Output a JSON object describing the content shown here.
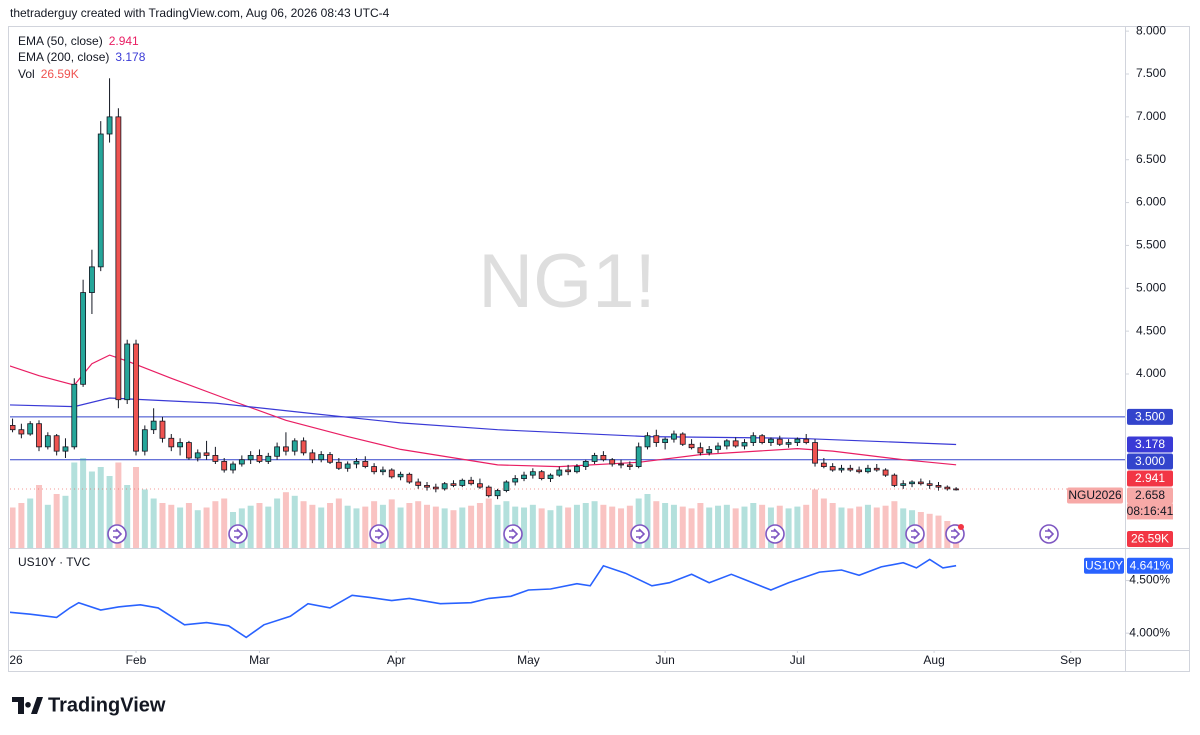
{
  "chart_data": {
    "type": "candlestick",
    "header": "thetraderguy created with TradingView.com, Aug 06, 2026 08:43 UTC-4",
    "watermark": "NG1!",
    "symbol_label": "NGU2026",
    "countdown": "08:16:41",
    "footer_brand": "TradingView",
    "up_color": "#26a69a",
    "down_color": "#ef5350",
    "xlim": [
      3.42,
      256.3
    ],
    "xticks": [
      {
        "value": 1,
        "label": "26"
      },
      {
        "value": 32,
        "label": "Feb"
      },
      {
        "value": 60,
        "label": "Mar"
      },
      {
        "value": 91,
        "label": "Apr"
      },
      {
        "value": 121,
        "label": "May"
      },
      {
        "value": 152,
        "label": "Jun"
      },
      {
        "value": 182,
        "label": "Jul"
      },
      {
        "value": 213,
        "label": "Aug"
      },
      {
        "value": 244,
        "label": "Sep"
      }
    ],
    "ylim": [
      1.97,
      8.06
    ],
    "yticks": [
      {
        "value": 4,
        "label": "4.000"
      },
      {
        "value": 4.5,
        "label": "4.500"
      },
      {
        "value": 5,
        "label": "5.000"
      },
      {
        "value": 5.5,
        "label": "5.500"
      },
      {
        "value": 6,
        "label": "6.000"
      },
      {
        "value": 6.5,
        "label": "6.500"
      },
      {
        "value": 7,
        "label": "7.000"
      },
      {
        "value": 7.5,
        "label": "7.500"
      },
      {
        "value": 8,
        "label": "8.000"
      }
    ],
    "x": [
      4,
      6,
      8,
      10,
      12,
      14,
      16,
      18,
      20,
      22,
      24,
      26,
      28,
      30,
      32,
      34,
      36,
      38,
      40,
      42,
      44,
      46,
      48,
      50,
      52,
      54,
      56,
      58,
      60,
      62,
      64,
      66,
      68,
      70,
      72,
      74,
      76,
      78,
      80,
      82,
      84,
      86,
      88,
      90,
      92,
      94,
      96,
      98,
      100,
      102,
      104,
      106,
      108,
      110,
      112,
      114,
      116,
      118,
      120,
      122,
      124,
      126,
      128,
      130,
      132,
      134,
      136,
      138,
      140,
      142,
      144,
      146,
      148,
      150,
      152,
      154,
      156,
      158,
      160,
      162,
      164,
      166,
      168,
      170,
      172,
      174,
      176,
      178,
      180,
      182,
      184,
      186,
      188,
      190,
      192,
      194,
      196,
      198,
      200,
      202,
      204,
      206,
      208,
      210,
      212,
      214,
      216,
      218
    ],
    "open": [
      3.4,
      3.35,
      3.3,
      3.42,
      3.15,
      3.28,
      3.1,
      3.15,
      3.88,
      4.95,
      5.25,
      6.8,
      7.0,
      3.7,
      4.35,
      3.1,
      3.35,
      3.45,
      3.25,
      3.15,
      3.2,
      3.02,
      3.08,
      3.05,
      2.98,
      2.88,
      2.95,
      3.0,
      3.05,
      2.98,
      3.04,
      3.15,
      3.1,
      3.22,
      3.08,
      3.0,
      3.06,
      2.97,
      2.9,
      2.95,
      2.98,
      2.92,
      2.86,
      2.88,
      2.8,
      2.83,
      2.74,
      2.7,
      2.68,
      2.66,
      2.72,
      2.7,
      2.76,
      2.72,
      2.68,
      2.58,
      2.64,
      2.74,
      2.78,
      2.82,
      2.86,
      2.78,
      2.82,
      2.88,
      2.86,
      2.92,
      2.98,
      3.05,
      3.0,
      2.95,
      2.94,
      2.92,
      3.15,
      3.28,
      3.2,
      3.24,
      3.3,
      3.18,
      3.14,
      3.08,
      3.12,
      3.16,
      3.22,
      3.16,
      3.2,
      3.28,
      3.2,
      3.24,
      3.18,
      3.2,
      3.24,
      3.2,
      2.96,
      2.92,
      2.88,
      2.9,
      2.88,
      2.86,
      2.9,
      2.88,
      2.82,
      2.7,
      2.72,
      2.74,
      2.72,
      2.7,
      2.68,
      2.66
    ],
    "high": [
      3.48,
      3.42,
      3.45,
      3.46,
      3.32,
      3.3,
      3.25,
      3.95,
      5.1,
      5.45,
      6.95,
      7.45,
      7.1,
      4.4,
      4.4,
      3.4,
      3.6,
      3.5,
      3.3,
      3.25,
      3.22,
      3.12,
      3.22,
      3.15,
      3.02,
      2.98,
      3.05,
      3.1,
      3.12,
      3.08,
      3.2,
      3.32,
      3.25,
      3.26,
      3.12,
      3.1,
      3.09,
      3.02,
      2.98,
      3.02,
      3.04,
      2.96,
      2.92,
      2.9,
      2.86,
      2.85,
      2.78,
      2.74,
      2.72,
      2.74,
      2.76,
      2.78,
      2.8,
      2.78,
      2.7,
      2.66,
      2.76,
      2.82,
      2.86,
      2.9,
      2.88,
      2.84,
      2.92,
      2.94,
      2.95,
      3.0,
      3.08,
      3.1,
      3.02,
      3.0,
      2.98,
      3.2,
      3.32,
      3.35,
      3.26,
      3.34,
      3.32,
      3.24,
      3.2,
      3.16,
      3.2,
      3.24,
      3.26,
      3.24,
      3.32,
      3.3,
      3.26,
      3.28,
      3.24,
      3.26,
      3.3,
      3.24,
      3.02,
      2.96,
      2.94,
      2.94,
      2.92,
      2.94,
      2.95,
      2.9,
      2.84,
      2.76,
      2.76,
      2.78,
      2.76,
      2.74,
      2.7,
      2.68
    ],
    "low": [
      3.32,
      3.25,
      3.28,
      3.1,
      3.12,
      3.05,
      3.02,
      3.12,
      3.85,
      4.7,
      5.2,
      6.7,
      3.6,
      3.65,
      3.05,
      3.05,
      3.3,
      3.2,
      3.1,
      3.05,
      3.0,
      2.98,
      3.0,
      2.95,
      2.85,
      2.84,
      2.92,
      2.95,
      2.96,
      2.95,
      3.0,
      3.05,
      3.05,
      3.05,
      2.96,
      2.97,
      2.95,
      2.88,
      2.86,
      2.9,
      2.9,
      2.83,
      2.82,
      2.78,
      2.76,
      2.72,
      2.66,
      2.64,
      2.62,
      2.64,
      2.68,
      2.68,
      2.7,
      2.66,
      2.56,
      2.54,
      2.62,
      2.7,
      2.75,
      2.78,
      2.76,
      2.74,
      2.8,
      2.82,
      2.84,
      2.88,
      2.95,
      2.98,
      2.92,
      2.9,
      2.88,
      2.9,
      3.12,
      3.15,
      3.12,
      3.2,
      3.16,
      3.12,
      3.05,
      3.05,
      3.08,
      3.12,
      3.14,
      3.12,
      3.16,
      3.18,
      3.16,
      3.16,
      3.14,
      3.16,
      3.18,
      2.92,
      2.9,
      2.86,
      2.85,
      2.86,
      2.84,
      2.84,
      2.86,
      2.8,
      2.68,
      2.66,
      2.68,
      2.7,
      2.66,
      2.64,
      2.64,
      2.64
    ],
    "close": [
      3.35,
      3.3,
      3.42,
      3.15,
      3.28,
      3.1,
      3.15,
      3.88,
      4.95,
      5.25,
      6.8,
      7.0,
      3.7,
      4.35,
      3.1,
      3.35,
      3.45,
      3.25,
      3.15,
      3.2,
      3.02,
      3.08,
      3.05,
      2.98,
      2.88,
      2.95,
      3.0,
      3.05,
      2.98,
      3.04,
      3.15,
      3.1,
      3.22,
      3.08,
      3.0,
      3.06,
      2.97,
      2.9,
      2.95,
      2.98,
      2.92,
      2.86,
      2.88,
      2.8,
      2.83,
      2.74,
      2.7,
      2.68,
      2.66,
      2.72,
      2.7,
      2.76,
      2.72,
      2.68,
      2.58,
      2.64,
      2.74,
      2.78,
      2.82,
      2.86,
      2.78,
      2.82,
      2.88,
      2.86,
      2.92,
      2.98,
      3.05,
      3.0,
      2.95,
      2.94,
      2.92,
      3.15,
      3.28,
      3.2,
      3.24,
      3.3,
      3.18,
      3.14,
      3.08,
      3.12,
      3.16,
      3.22,
      3.16,
      3.2,
      3.28,
      3.2,
      3.24,
      3.18,
      3.2,
      3.24,
      3.2,
      2.96,
      2.92,
      2.88,
      2.9,
      2.88,
      2.86,
      2.9,
      2.88,
      2.82,
      2.7,
      2.72,
      2.74,
      2.72,
      2.7,
      2.68,
      2.66,
      2.658
    ],
    "volume": {
      "name": "Vol",
      "ylim": [
        0,
        100
      ],
      "value_label": "26.59K",
      "values": [
        45,
        50,
        55,
        70,
        48,
        60,
        58,
        95,
        100,
        85,
        90,
        80,
        95,
        70,
        90,
        65,
        55,
        50,
        48,
        45,
        50,
        42,
        45,
        52,
        55,
        40,
        44,
        47,
        50,
        46,
        55,
        62,
        58,
        52,
        48,
        45,
        50,
        55,
        47,
        44,
        46,
        52,
        48,
        54,
        45,
        50,
        52,
        48,
        46,
        44,
        42,
        45,
        47,
        50,
        55,
        48,
        52,
        46,
        45,
        48,
        44,
        42,
        47,
        45,
        48,
        50,
        52,
        48,
        46,
        44,
        47,
        55,
        60,
        52,
        50,
        48,
        46,
        44,
        50,
        45,
        47,
        48,
        44,
        46,
        50,
        48,
        45,
        47,
        44,
        46,
        48,
        65,
        55,
        50,
        45,
        44,
        46,
        48,
        45,
        47,
        52,
        44,
        42,
        40,
        38,
        36,
        30,
        26.59
      ]
    },
    "ema": [
      {
        "name": "EMA (50, close)",
        "color": "#e91e63",
        "x": [
          3,
          10,
          18,
          22,
          26,
          30,
          40,
          52,
          66,
          80,
          92,
          114,
          128,
          146,
          160,
          182,
          190,
          206,
          218
        ],
        "values": [
          4.1,
          3.98,
          3.87,
          4.12,
          4.22,
          4.15,
          3.95,
          3.72,
          3.46,
          3.27,
          3.12,
          2.94,
          2.92,
          2.97,
          3.06,
          3.13,
          3.1,
          3.0,
          2.941
        ]
      },
      {
        "name": "EMA (200, close)",
        "color": "#3a3ad6",
        "x": [
          3,
          18,
          26,
          50,
          70,
          92,
          114,
          148,
          182,
          218
        ],
        "values": [
          3.64,
          3.62,
          3.72,
          3.66,
          3.55,
          3.43,
          3.35,
          3.27,
          3.25,
          3.178
        ]
      }
    ],
    "hlines": [
      {
        "value": 3.5,
        "label": "3.500"
      },
      {
        "value": 3.0,
        "label": "3.000"
      }
    ],
    "hline_color": "#3344cc",
    "us10y": {
      "title": "US10Y · TVC",
      "name": "US10Y",
      "color": "#2962ff",
      "ylim": [
        3.84,
        4.8
      ],
      "yticks": [
        {
          "value": 4.5,
          "label": "4.500%"
        },
        {
          "value": 4.0,
          "label": "4.000%"
        }
      ],
      "last_label": "4.641%",
      "x": [
        3,
        8,
        14,
        17,
        19,
        24,
        28,
        33,
        37,
        43,
        48,
        53,
        57,
        61,
        67,
        71,
        76,
        81,
        85,
        90,
        94,
        101,
        108,
        112,
        117,
        121,
        126,
        132,
        135,
        138,
        143,
        149,
        153,
        158,
        162,
        167,
        170,
        176,
        180,
        187,
        192,
        196,
        201,
        206,
        209,
        212,
        215,
        218
      ],
      "values": [
        4.2,
        4.18,
        4.15,
        4.24,
        4.29,
        4.22,
        4.25,
        4.27,
        4.24,
        4.08,
        4.1,
        4.07,
        3.96,
        4.08,
        4.16,
        4.28,
        4.24,
        4.36,
        4.34,
        4.31,
        4.33,
        4.28,
        4.29,
        4.33,
        4.35,
        4.41,
        4.42,
        4.47,
        4.45,
        4.64,
        4.57,
        4.45,
        4.48,
        4.56,
        4.48,
        4.56,
        4.51,
        4.41,
        4.48,
        4.58,
        4.6,
        4.55,
        4.63,
        4.67,
        4.62,
        4.7,
        4.62,
        4.641
      ]
    }
  }
}
